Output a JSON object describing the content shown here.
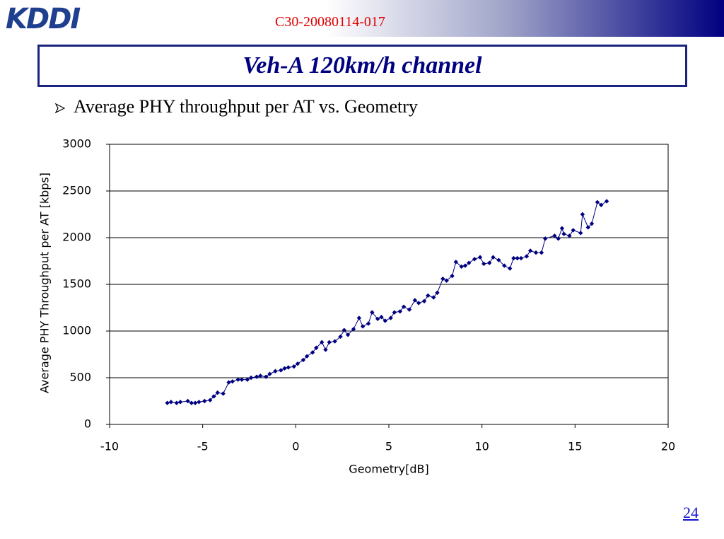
{
  "logo": "KDDI",
  "doc_id": "C30-20080114-017",
  "slide_title": "Veh-A 120km/h channel",
  "bullet": "Average PHY throughput per AT vs. Geometry",
  "page_number": "24",
  "chart_data": {
    "type": "line",
    "x_label": "Geometry[dB]",
    "y_label": "Average PHY Throughput per AT [kbps]",
    "color": "#000080",
    "xlim": [
      -10,
      20
    ],
    "xticks": [
      -10,
      -5,
      0,
      5,
      10,
      15,
      20
    ],
    "ylim": [
      0,
      3000
    ],
    "yticks": [
      0,
      500,
      1000,
      1500,
      2000,
      2500,
      3000
    ],
    "grid": true,
    "x": [
      -6.9,
      -6.7,
      -6.4,
      -6.2,
      -5.8,
      -5.6,
      -5.4,
      -5.2,
      -4.9,
      -4.6,
      -4.4,
      -4.2,
      -3.9,
      -3.6,
      -3.4,
      -3.1,
      -2.9,
      -2.6,
      -2.4,
      -2.1,
      -1.9,
      -1.6,
      -1.4,
      -1.1,
      -0.8,
      -0.6,
      -0.4,
      -0.1,
      0.1,
      0.4,
      0.6,
      0.9,
      1.1,
      1.4,
      1.6,
      1.8,
      2.1,
      2.4,
      2.6,
      2.8,
      3.1,
      3.4,
      3.6,
      3.9,
      4.1,
      4.4,
      4.6,
      4.8,
      5.1,
      5.3,
      5.6,
      5.8,
      6.1,
      6.4,
      6.6,
      6.9,
      7.1,
      7.4,
      7.6,
      7.9,
      8.1,
      8.4,
      8.6,
      8.9,
      9.1,
      9.3,
      9.6,
      9.9,
      10.1,
      10.4,
      10.6,
      10.9,
      11.2,
      11.5,
      11.7,
      11.9,
      12.1,
      12.4,
      12.6,
      12.9,
      13.2,
      13.4,
      13.9,
      14.1,
      14.3,
      14.4,
      14.7,
      14.9,
      15.3,
      15.4,
      15.7,
      15.9,
      16.2,
      16.4,
      16.7
    ],
    "values": [
      230,
      240,
      230,
      240,
      250,
      230,
      230,
      240,
      250,
      260,
      300,
      340,
      330,
      450,
      460,
      480,
      480,
      480,
      500,
      510,
      520,
      510,
      540,
      570,
      580,
      600,
      610,
      620,
      650,
      690,
      730,
      770,
      820,
      880,
      800,
      880,
      890,
      940,
      1010,
      960,
      1020,
      1140,
      1050,
      1080,
      1200,
      1130,
      1150,
      1110,
      1140,
      1200,
      1210,
      1260,
      1230,
      1330,
      1300,
      1320,
      1380,
      1360,
      1410,
      1560,
      1540,
      1590,
      1740,
      1690,
      1700,
      1730,
      1770,
      1790,
      1720,
      1730,
      1790,
      1760,
      1700,
      1670,
      1780,
      1780,
      1780,
      1800,
      1860,
      1840,
      1840,
      1990,
      2020,
      1990,
      2100,
      2040,
      2020,
      2080,
      2050,
      2250,
      2110,
      2150,
      2380,
      2350,
      2390
    ]
  }
}
